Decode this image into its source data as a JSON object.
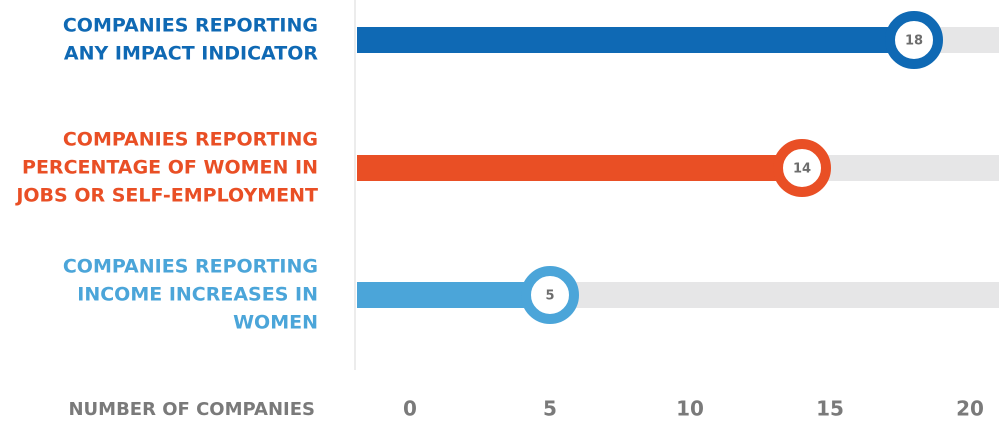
{
  "chart_data": {
    "type": "bar",
    "orientation": "horizontal",
    "categories": [
      [
        "COMPANIES REPORTING",
        "ANY IMPACT INDICATOR"
      ],
      [
        "COMPANIES REPORTING",
        "PERCENTAGE OF WOMEN IN",
        "JOBS OR SELF-EMPLOYMENT"
      ],
      [
        "COMPANIES REPORTING",
        "INCOME INCREASES IN",
        "WOMEN"
      ]
    ],
    "values": [
      18,
      14,
      5
    ],
    "colors": [
      "#0f69b4",
      "#e94f25",
      "#4ba5d9"
    ],
    "x_label": "NUMBER OF COMPANIES",
    "xlim": [
      0,
      20
    ],
    "xticks": [
      0,
      5,
      10,
      15,
      20
    ],
    "grid": false
  }
}
